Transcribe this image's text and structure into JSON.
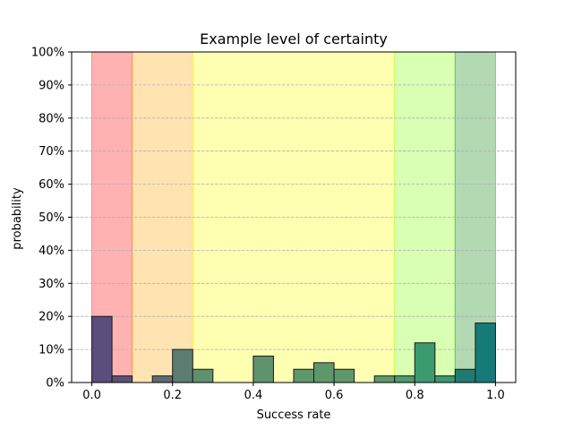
{
  "chart_data": {
    "type": "bar",
    "title": "Example level of certainty",
    "xlabel": "Success rate",
    "ylabel": "probability",
    "xlim": [
      -0.05,
      1.05
    ],
    "ylim": [
      0,
      100
    ],
    "x_ticks": [
      0.0,
      0.2,
      0.4,
      0.6,
      0.8,
      1.0
    ],
    "x_tick_labels": [
      "0.0",
      "0.2",
      "0.4",
      "0.6",
      "0.8",
      "1.0"
    ],
    "y_ticks": [
      0,
      10,
      20,
      30,
      40,
      50,
      60,
      70,
      80,
      90,
      100
    ],
    "y_tick_labels": [
      "0%",
      "10%",
      "20%",
      "30%",
      "40%",
      "50%",
      "60%",
      "70%",
      "80%",
      "90%",
      "100%"
    ],
    "grid": {
      "y": true,
      "x": false,
      "style": "dashed"
    },
    "bin_width": 0.05,
    "bins": [
      {
        "x0": 0.0,
        "value": 20
      },
      {
        "x0": 0.05,
        "value": 2
      },
      {
        "x0": 0.1,
        "value": 0
      },
      {
        "x0": 0.15,
        "value": 2
      },
      {
        "x0": 0.2,
        "value": 10
      },
      {
        "x0": 0.25,
        "value": 4
      },
      {
        "x0": 0.3,
        "value": 0
      },
      {
        "x0": 0.35,
        "value": 0
      },
      {
        "x0": 0.4,
        "value": 8
      },
      {
        "x0": 0.45,
        "value": 0
      },
      {
        "x0": 0.5,
        "value": 4
      },
      {
        "x0": 0.55,
        "value": 6
      },
      {
        "x0": 0.6,
        "value": 4
      },
      {
        "x0": 0.65,
        "value": 0
      },
      {
        "x0": 0.7,
        "value": 2
      },
      {
        "x0": 0.75,
        "value": 2
      },
      {
        "x0": 0.8,
        "value": 12
      },
      {
        "x0": 0.85,
        "value": 2
      },
      {
        "x0": 0.9,
        "value": 4
      },
      {
        "x0": 0.95,
        "value": 18
      }
    ],
    "bands": [
      {
        "x0": 0.0,
        "x1": 0.1,
        "color": "#ff0000",
        "opacity": 0.3
      },
      {
        "x0": 0.1,
        "x1": 0.25,
        "color": "#ffa500",
        "opacity": 0.3
      },
      {
        "x0": 0.25,
        "x1": 0.75,
        "color": "#ffff00",
        "opacity": 0.3
      },
      {
        "x0": 0.75,
        "x1": 0.9,
        "color": "#7fff00",
        "opacity": 0.3
      },
      {
        "x0": 0.9,
        "x1": 1.0,
        "color": "#008000",
        "opacity": 0.3
      }
    ],
    "bar_colors": {
      "0.00": "#5b4e7c",
      "0.05": "#5e4f77",
      "0.15": "#5f6b72",
      "0.20": "#5d7d72",
      "0.25": "#5f9170",
      "0.40": "#5f936e",
      "0.50": "#5f976c",
      "0.55": "#5f976c",
      "0.60": "#5f976c",
      "0.70": "#5f9a6a",
      "0.75": "#4e9c68",
      "0.80": "#3b9a6e",
      "0.85": "#3c9870",
      "0.90": "#1f7b72",
      "0.95": "#157a78"
    }
  }
}
